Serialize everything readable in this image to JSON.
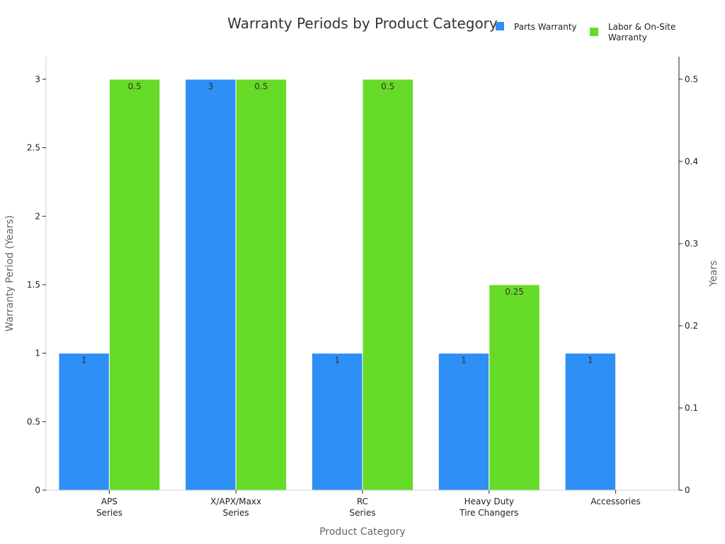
{
  "chart_data": {
    "type": "bar",
    "title": "Warranty Periods by Product Category",
    "xlabel": "Product Category",
    "ylabel": "Warranty Period (Years)",
    "y2label": "Years",
    "categories": [
      [
        "APS",
        "Series"
      ],
      [
        "X/APX/Maxx",
        "Series"
      ],
      [
        "RC",
        "Series"
      ],
      [
        "Heavy Duty",
        "Tire Changers"
      ],
      [
        "Accessories"
      ]
    ],
    "series": [
      {
        "name": "Parts Warranty",
        "axis": "left",
        "color": "#2e8ff7",
        "values": [
          1,
          3,
          1,
          1,
          1
        ],
        "labels": [
          "1",
          "3",
          "1",
          "1",
          "1"
        ]
      },
      {
        "name": "Labor & On-Site Warranty",
        "legend_lines": [
          "Labor & On-Site",
          "Warranty"
        ],
        "axis": "right",
        "color": "#66db27",
        "values": [
          0.5,
          0.5,
          0.5,
          0.25,
          null
        ],
        "labels": [
          "0.5",
          "0.5",
          "0.5",
          "0.25",
          ""
        ]
      }
    ],
    "ylim": [
      0,
      3.165
    ],
    "y2lim": [
      0,
      0.5275
    ],
    "yticks": [
      "0",
      "0.5",
      "1",
      "1.5",
      "2",
      "2.5",
      "3"
    ],
    "y2ticks": [
      "0",
      "0.1",
      "0.2",
      "0.3",
      "0.4",
      "0.5"
    ],
    "legend_position": "top-right",
    "grid": false
  }
}
